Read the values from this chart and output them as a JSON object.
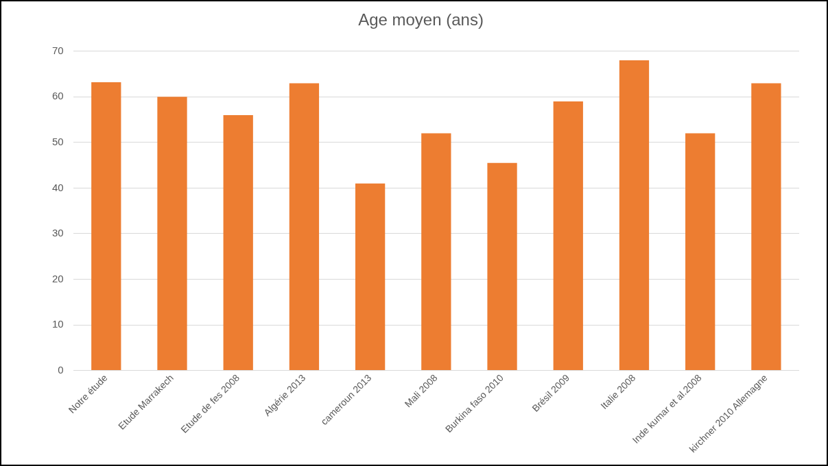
{
  "chart_data": {
    "type": "bar",
    "title": "Age moyen (ans)",
    "categories": [
      "Notre étude",
      "Etude Marrakech",
      "Etude de fes 2008",
      "Algérie 2013",
      "cameroun 2013",
      "Mali 2008",
      "Burkina faso 2010",
      "Brésil 2009",
      "Italie 2008",
      "Inde kumar et al.2008",
      "kirchner 2010 Allemagne"
    ],
    "values": [
      63.2,
      60,
      56,
      63,
      41,
      52,
      45.5,
      59,
      68,
      52,
      63
    ],
    "color": "#ed7d31",
    "ylim": [
      0,
      70
    ],
    "yticks": [
      0,
      10,
      20,
      30,
      40,
      50,
      60,
      70
    ],
    "grid": "y",
    "legend": false
  }
}
